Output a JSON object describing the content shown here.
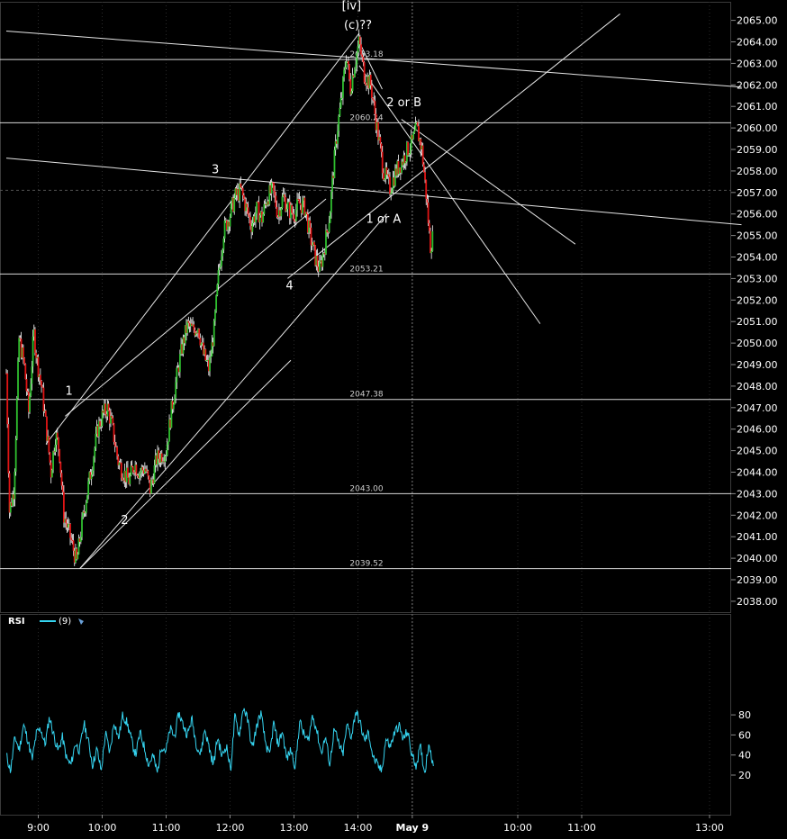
{
  "chart_data": {
    "type": "candlestick",
    "instrument_panel": {
      "price_axis": {
        "ylim": [
          2037.3,
          2065.5
        ],
        "ticks": [
          "2038.00",
          "2039.00",
          "2040.00",
          "2041.00",
          "2042.00",
          "2043.00",
          "2044.00",
          "2045.00",
          "2046.00",
          "2047.00",
          "2048.00",
          "2049.00",
          "2050.00",
          "2051.00",
          "2052.00",
          "2053.00",
          "2054.00",
          "2055.00",
          "2056.00",
          "2057.00",
          "2058.00",
          "2059.00",
          "2060.00",
          "2061.00",
          "2062.00",
          "2063.00",
          "2064.00",
          "2065.00"
        ]
      },
      "time_axis": {
        "ticks": [
          {
            "label": "9:00",
            "t": 9.0
          },
          {
            "label": "10:00",
            "t": 10.0
          },
          {
            "label": "11:00",
            "t": 11.0
          },
          {
            "label": "12:00",
            "t": 12.0
          },
          {
            "label": "13:00",
            "t": 13.0
          },
          {
            "label": "14:00",
            "t": 14.0
          },
          {
            "label": "May 9",
            "t": 14.85
          },
          {
            "label": "10:00",
            "t": 16.5
          },
          {
            "label": "11:00",
            "t": 17.5
          },
          {
            "label": "13:00",
            "t": 19.5
          }
        ],
        "session_break": 14.85
      },
      "levels": [
        {
          "value": 2063.18,
          "label": "2063.18"
        },
        {
          "value": 2060.24,
          "label": "2060.24"
        },
        {
          "value": 2053.21,
          "label": "2053.21"
        },
        {
          "value": 2047.38,
          "label": "2047.38"
        },
        {
          "value": 2043.0,
          "label": "2043.00"
        },
        {
          "value": 2039.52,
          "label": "2039.52"
        }
      ],
      "price_path": [
        [
          8.5,
          2048.6
        ],
        [
          8.55,
          2042.2
        ],
        [
          8.62,
          2043.2
        ],
        [
          8.7,
          2050.2
        ],
        [
          8.78,
          2049.0
        ],
        [
          8.85,
          2046.8
        ],
        [
          8.93,
          2050.5
        ],
        [
          8.98,
          2049.2
        ],
        [
          9.05,
          2048.0
        ],
        [
          9.12,
          2046.2
        ],
        [
          9.2,
          2044.0
        ],
        [
          9.27,
          2045.8
        ],
        [
          9.33,
          2045.0
        ],
        [
          9.4,
          2042.0
        ],
        [
          9.5,
          2041.0
        ],
        [
          9.6,
          2039.8
        ],
        [
          9.68,
          2041.5
        ],
        [
          9.75,
          2042.8
        ],
        [
          9.85,
          2044.5
        ],
        [
          9.93,
          2046.0
        ],
        [
          10.0,
          2046.6
        ],
        [
          10.08,
          2047.0
        ],
        [
          10.15,
          2046.2
        ],
        [
          10.25,
          2044.5
        ],
        [
          10.33,
          2044.0
        ],
        [
          10.42,
          2043.6
        ],
        [
          10.5,
          2044.4
        ],
        [
          10.58,
          2044.0
        ],
        [
          10.67,
          2044.2
        ],
        [
          10.75,
          2043.2
        ],
        [
          10.85,
          2044.6
        ],
        [
          10.92,
          2044.8
        ],
        [
          11.0,
          2045.0
        ],
        [
          11.08,
          2046.8
        ],
        [
          11.17,
          2048.5
        ],
        [
          11.25,
          2049.8
        ],
        [
          11.33,
          2050.8
        ],
        [
          11.42,
          2050.6
        ],
        [
          11.5,
          2050.8
        ],
        [
          11.58,
          2049.5
        ],
        [
          11.67,
          2048.8
        ],
        [
          11.75,
          2050.6
        ],
        [
          11.82,
          2053.2
        ],
        [
          11.9,
          2055.2
        ],
        [
          12.0,
          2056.0
        ],
        [
          12.08,
          2056.8
        ],
        [
          12.17,
          2057.1
        ],
        [
          12.25,
          2056.3
        ],
        [
          12.33,
          2055.5
        ],
        [
          12.42,
          2056.2
        ],
        [
          12.5,
          2055.8
        ],
        [
          12.58,
          2056.8
        ],
        [
          12.67,
          2057.1
        ],
        [
          12.75,
          2056.0
        ],
        [
          12.83,
          2056.8
        ],
        [
          12.92,
          2056.2
        ],
        [
          13.0,
          2056.0
        ],
        [
          13.08,
          2056.5
        ],
        [
          13.17,
          2056.3
        ],
        [
          13.25,
          2055.0
        ],
        [
          13.33,
          2054.0
        ],
        [
          13.4,
          2053.4
        ],
        [
          13.48,
          2054.5
        ],
        [
          13.56,
          2056.0
        ],
        [
          13.6,
          2057.5
        ],
        [
          13.68,
          2060.0
        ],
        [
          13.75,
          2061.5
        ],
        [
          13.82,
          2063.5
        ],
        [
          13.88,
          2061.8
        ],
        [
          13.95,
          2063.0
        ],
        [
          14.02,
          2064.0
        ],
        [
          14.1,
          2062.5
        ],
        [
          14.2,
          2062.0
        ],
        [
          14.3,
          2060.0
        ],
        [
          14.4,
          2058.0
        ],
        [
          14.5,
          2057.2
        ],
        [
          14.6,
          2058.0
        ],
        [
          14.7,
          2058.5
        ],
        [
          14.78,
          2059.0
        ],
        [
          14.85,
          2059.3
        ],
        [
          14.92,
          2060.0
        ],
        [
          15.0,
          2059.0
        ],
        [
          15.08,
          2056.5
        ],
        [
          15.13,
          2054.5
        ],
        [
          15.18,
          2055.0
        ]
      ],
      "trendlines": [
        {
          "from": [
            8.5,
            2064.5
          ],
          "to": [
            20.0,
            2061.9
          ]
        },
        {
          "from": [
            8.5,
            2058.6
          ],
          "to": [
            20.0,
            2055.5
          ]
        },
        {
          "from": [
            9.65,
            2039.52
          ],
          "to": [
            14.45,
            2056.0
          ]
        },
        {
          "from": [
            9.65,
            2039.52
          ],
          "to": [
            12.95,
            2049.2
          ]
        },
        {
          "from": [
            9.12,
            2045.3
          ],
          "to": [
            14.02,
            2064.4
          ]
        },
        {
          "from": [
            9.42,
            2046.6
          ],
          "to": [
            13.5,
            2056.7
          ]
        },
        {
          "from": [
            14.02,
            2064.0
          ],
          "to": [
            14.38,
            2061.8
          ]
        },
        {
          "from": [
            14.02,
            2062.9
          ],
          "to": [
            16.85,
            2050.9
          ]
        },
        {
          "from": [
            14.68,
            2060.4
          ],
          "to": [
            17.4,
            2054.6
          ]
        },
        {
          "from": [
            12.9,
            2053.0
          ],
          "to": [
            18.1,
            2065.3
          ]
        }
      ],
      "annotations": [
        {
          "text": "1",
          "t": 9.48,
          "p": 2047.6
        },
        {
          "text": "2",
          "t": 10.35,
          "p": 2041.6
        },
        {
          "text": "3",
          "t": 11.77,
          "p": 2057.9
        },
        {
          "text": "4",
          "t": 12.93,
          "p": 2052.5
        },
        {
          "text": "[iv]",
          "t": 13.9,
          "p": 2065.5
        },
        {
          "text": "(c)??",
          "t": 14.0,
          "p": 2064.6
        },
        {
          "text": "2 or B",
          "t": 14.72,
          "p": 2061.0
        },
        {
          "text": "1 or A",
          "t": 14.4,
          "p": 2055.6
        }
      ]
    },
    "rsi_panel": {
      "title": "RSI",
      "period": "(9)",
      "ylim": [
        8,
        98
      ],
      "ticks": [
        "20",
        "40",
        "60",
        "80"
      ],
      "values": [
        40,
        24,
        58,
        45,
        70,
        55,
        35,
        62,
        66,
        50,
        78,
        60,
        44,
        58,
        36,
        30,
        52,
        44,
        72,
        54,
        30,
        46,
        24,
        62,
        42,
        74,
        56,
        80,
        72,
        55,
        40,
        62,
        48,
        30,
        40,
        22,
        50,
        44,
        66,
        58,
        82,
        70,
        60,
        76,
        52,
        40,
        66,
        48,
        30,
        58,
        38,
        50,
        25,
        78,
        60,
        88,
        74,
        46,
        68,
        82,
        54,
        38,
        72,
        50,
        64,
        36,
        45,
        28,
        74,
        60,
        54,
        80,
        64,
        42,
        58,
        30,
        66,
        52,
        40,
        70,
        58,
        84,
        72,
        54,
        62,
        38,
        30,
        24,
        56,
        48,
        62,
        70,
        55,
        64,
        40,
        30,
        48,
        22,
        54,
        26
      ]
    }
  }
}
